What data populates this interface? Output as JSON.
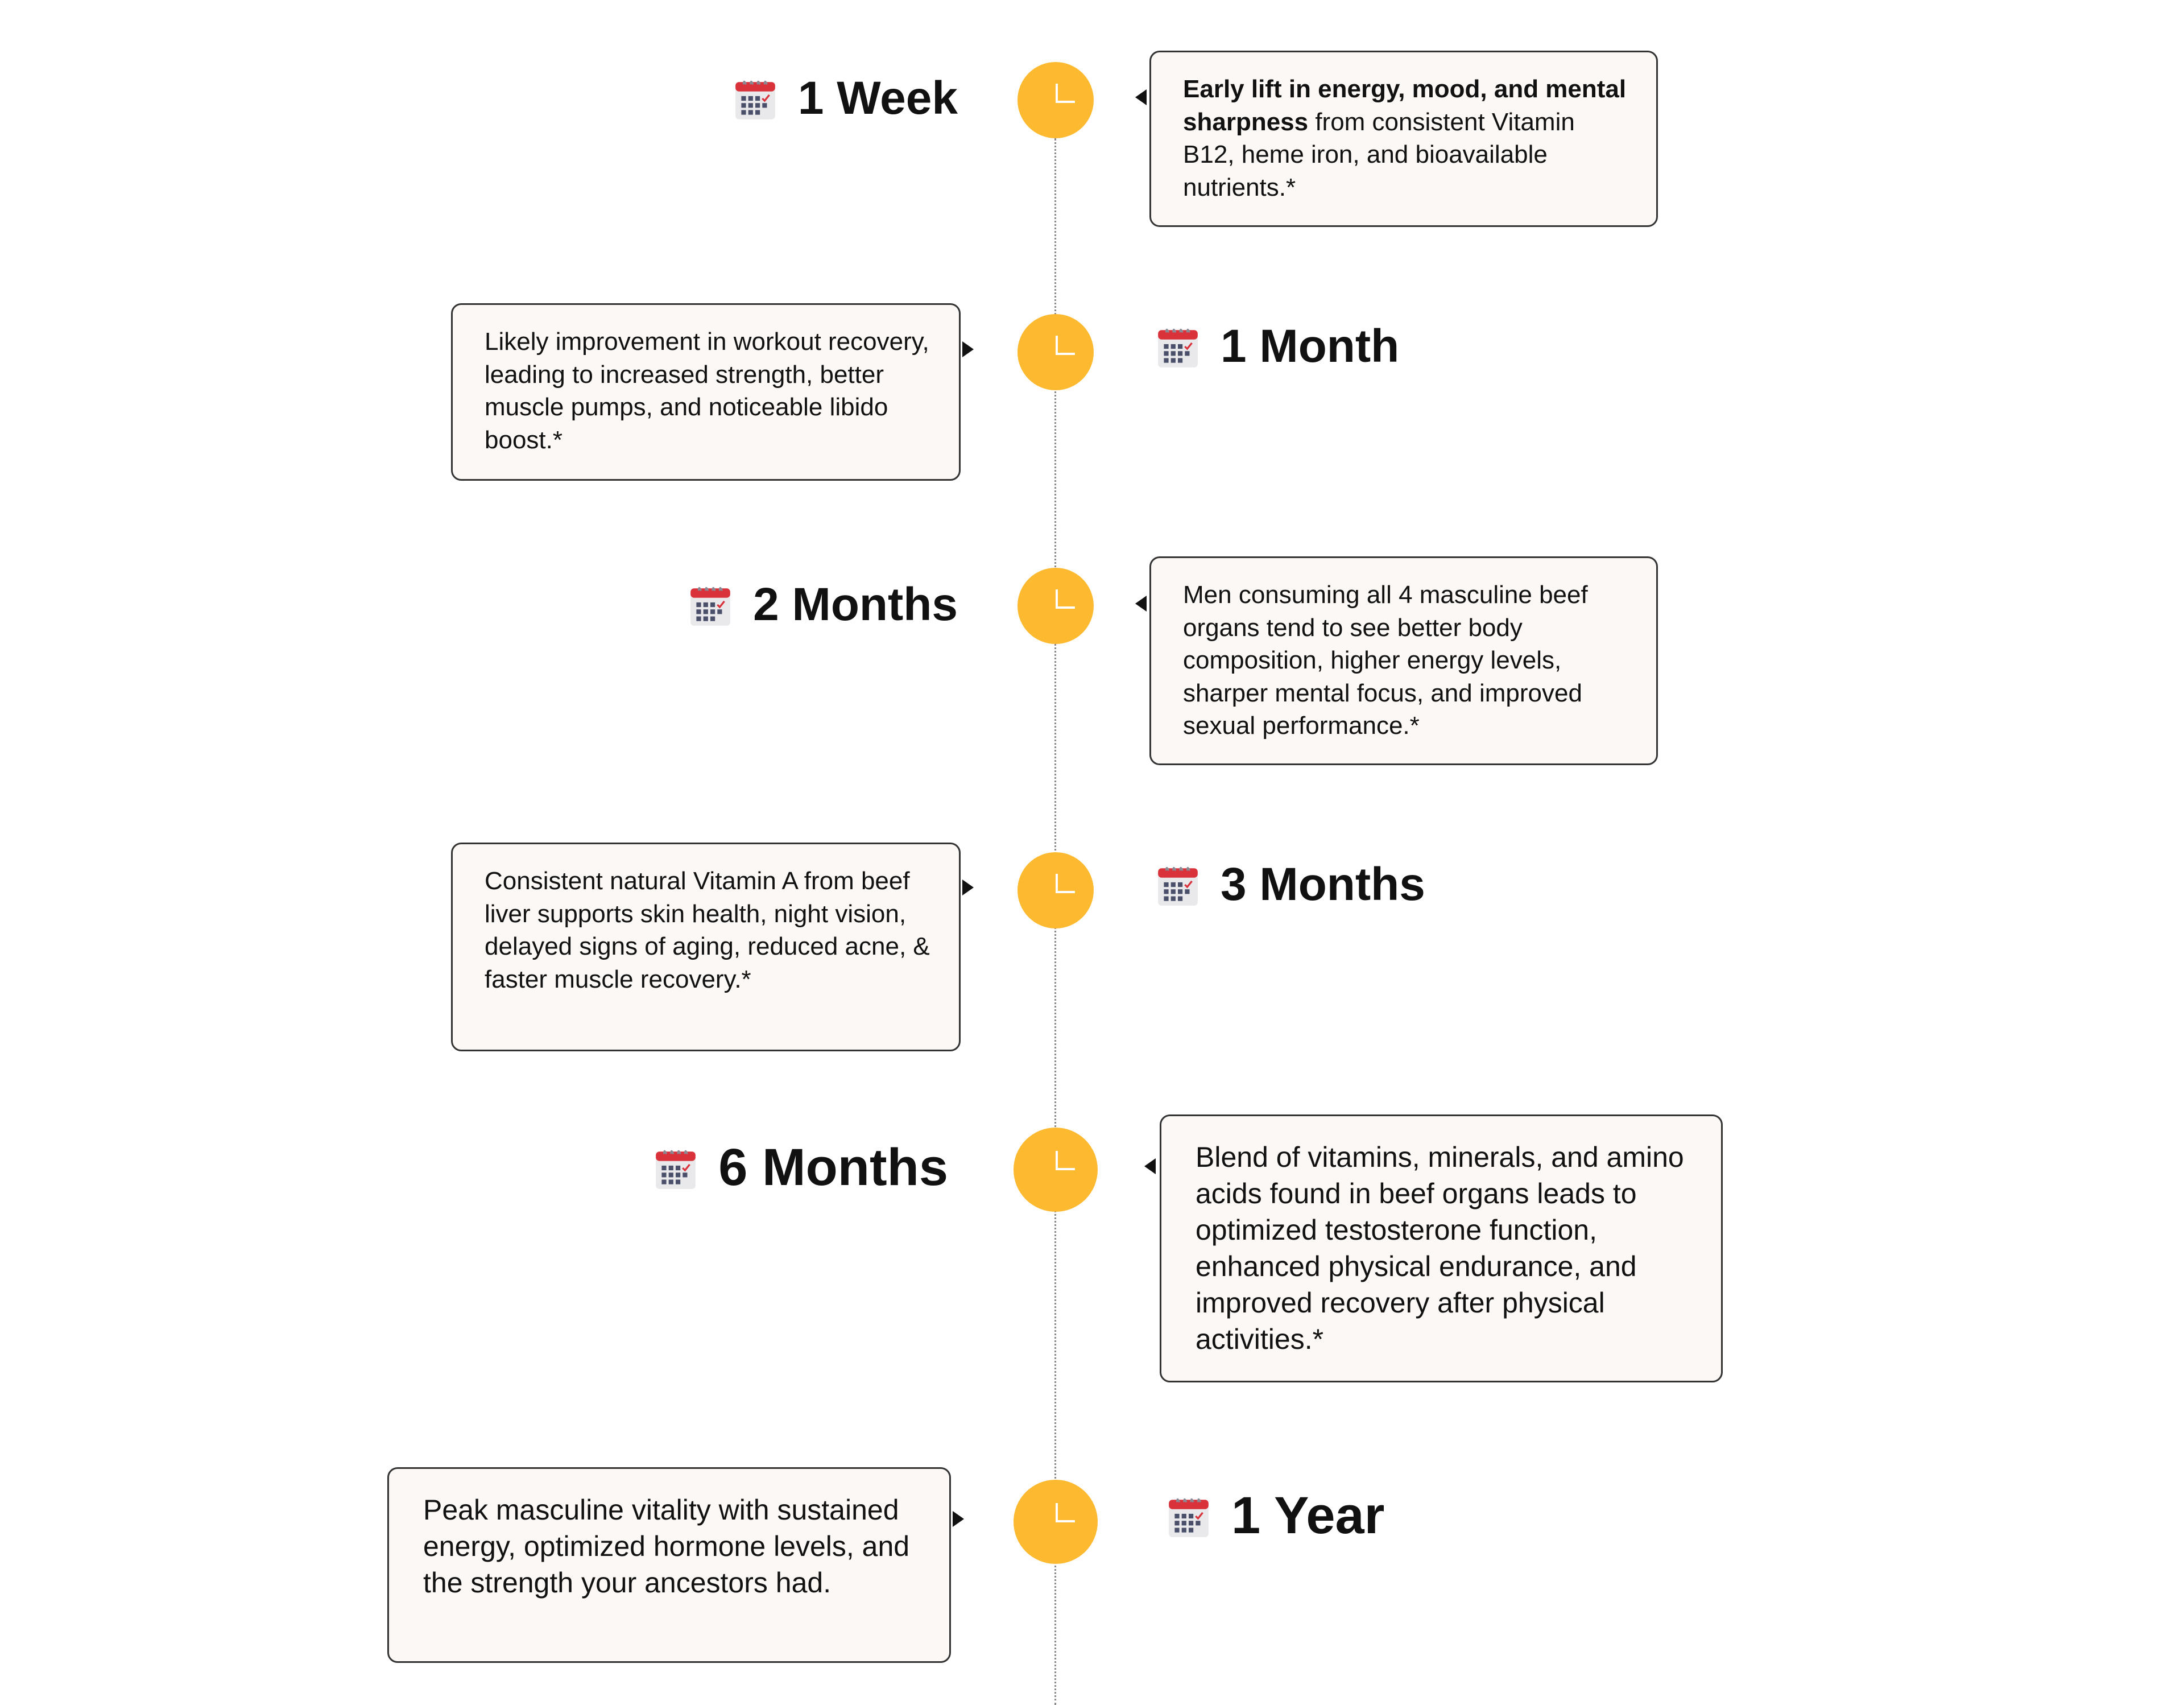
{
  "colors": {
    "milestone_circle": "#FDB92F",
    "card_background": "#FBF8F5",
    "card_border": "#333333"
  },
  "icons": {
    "label": "calendar-icon",
    "milestone": "clock-icon"
  },
  "timeline": [
    {
      "label": "1 Week",
      "text_bold": "Early lift in energy, mood, and mental sharpness",
      "text": " from consistent Vitamin B12, heme iron, and bioavailable nutrients.*"
    },
    {
      "label": "1 Month",
      "text": "Likely improvement in workout recovery, leading to increased strength, better muscle pumps, and noticeable libido boost.*"
    },
    {
      "label": "2 Months",
      "text": "Men consuming all 4 masculine beef organs tend to see better body composition, higher energy levels, sharper mental focus, and improved sexual performance.*"
    },
    {
      "label": "3 Months",
      "text": "Consistent natural Vitamin A from beef liver supports skin health, night vision, delayed signs of aging, reduced acne, & faster muscle recovery.*"
    },
    {
      "label": "6 Months",
      "text": "Blend of vitamins, minerals, and amino acids found in beef organs leads to optimized testosterone function, enhanced physical endurance, and improved recovery after physical activities.*"
    },
    {
      "label": "1 Year",
      "text": "Peak masculine vitality with sustained energy, optimized hormone levels, and the strength your ancestors had."
    }
  ]
}
